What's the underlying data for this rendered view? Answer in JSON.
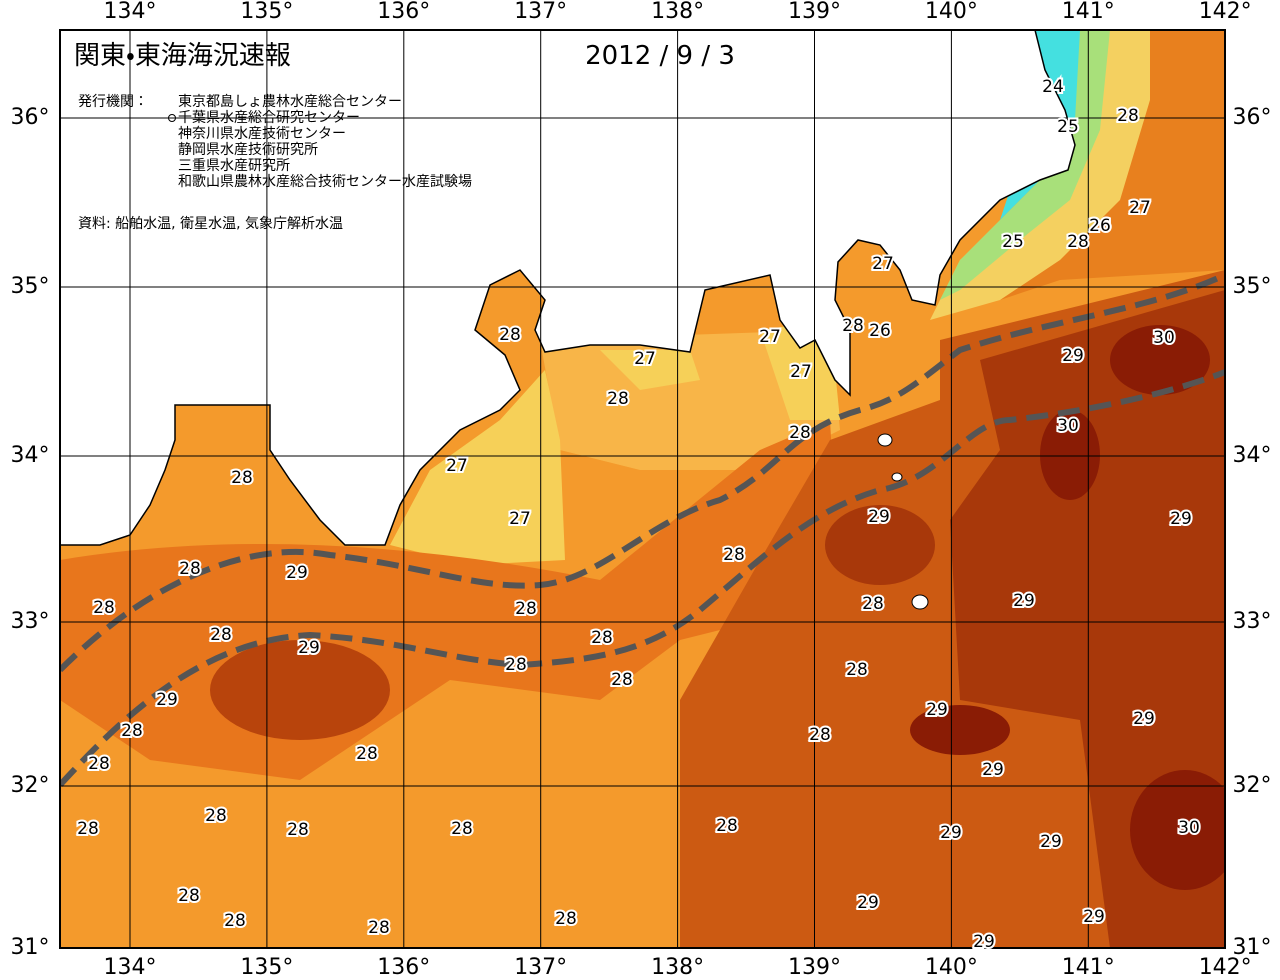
{
  "header": {
    "title": "関東・東海海況速報",
    "date": "2012 / 9 / 3"
  },
  "publishers": {
    "label": "発行機関：",
    "names": [
      "東京都島しょ農林水産総合センター",
      "千葉県水産総合研究センター",
      "神奈川県水産技術センター",
      "静岡県水産技術研究所",
      "三重県水産研究所",
      "和歌山県農林水産総合技術センター水産試験場"
    ]
  },
  "source": "資料: 船舶水温, 衛星水温, 気象庁解析水温",
  "longitude_labels": [
    "134°",
    "135°",
    "136°",
    "137°",
    "138°",
    "139°",
    "140°",
    "141°",
    "142°"
  ],
  "latitude_labels": [
    "31°",
    "32°",
    "33°",
    "34°",
    "35°",
    "36°"
  ],
  "contour_labels": [
    24,
    25,
    28,
    27,
    26,
    28,
    25,
    27,
    28,
    26,
    27,
    27,
    27,
    28,
    28,
    28,
    27,
    27,
    30,
    29,
    30,
    28,
    29,
    29,
    28,
    29,
    28,
    28,
    28,
    29,
    28,
    28,
    28,
    29,
    28,
    28,
    28,
    29,
    28,
    29,
    29,
    28,
    28,
    28,
    29,
    28,
    28,
    28,
    28,
    28,
    29,
    29,
    30,
    28,
    29,
    29,
    28,
    28,
    28,
    29
  ]
}
